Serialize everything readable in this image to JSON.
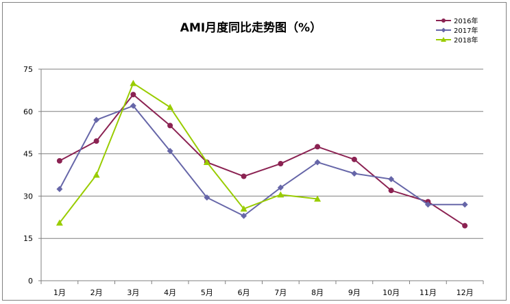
{
  "chart_data": {
    "type": "line",
    "title": "AMI月度同比走势图（%）",
    "xlabel": "",
    "ylabel": "",
    "categories": [
      "1月",
      "2月",
      "3月",
      "4月",
      "5月",
      "6月",
      "7月",
      "8月",
      "9月",
      "10月",
      "11月",
      "12月"
    ],
    "ylim": [
      0,
      75
    ],
    "yticks": [
      0,
      15,
      30,
      45,
      60,
      75
    ],
    "grid": true,
    "legend_position": "top-right",
    "series": [
      {
        "name": "2016年",
        "color": "#8B2252",
        "marker": "circle",
        "values": [
          42.5,
          49.5,
          66,
          55,
          42,
          37,
          41.5,
          47.5,
          43,
          32,
          28,
          19.5
        ]
      },
      {
        "name": "2017年",
        "color": "#6666A8",
        "marker": "diamond",
        "values": [
          32.5,
          57,
          62,
          46,
          29.5,
          23,
          33,
          42,
          38,
          36,
          27,
          27
        ]
      },
      {
        "name": "2018年",
        "color": "#99CC00",
        "marker": "triangle",
        "values": [
          20.5,
          37.5,
          70,
          61.5,
          42,
          25.5,
          30.5,
          29,
          null,
          null,
          null,
          null
        ]
      }
    ]
  }
}
